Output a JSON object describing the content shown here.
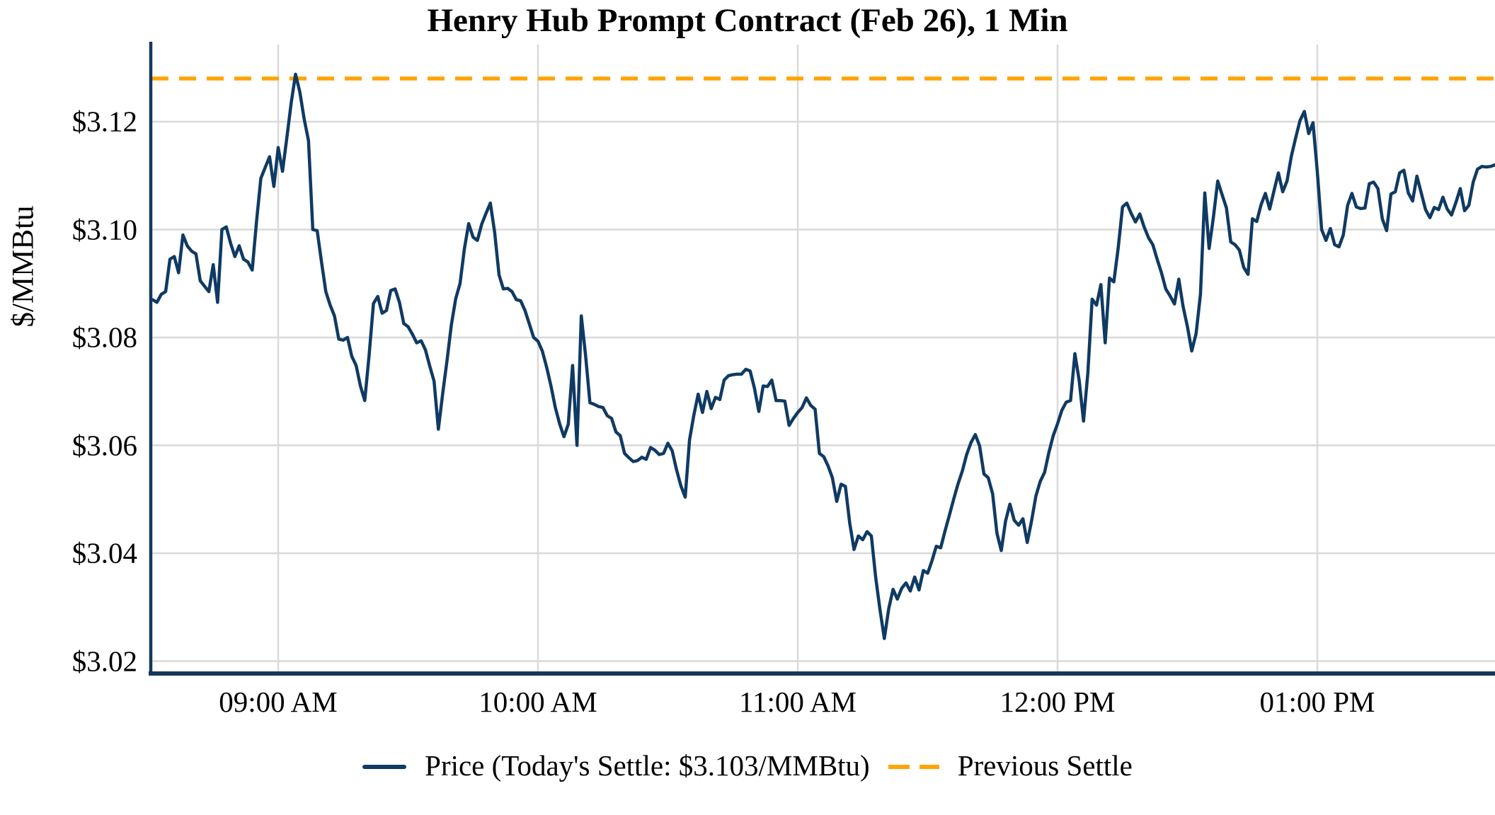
{
  "title": "Henry Hub Prompt Contract (Feb 26), 1 Min",
  "y_axis": {
    "label": "$/MMBtu",
    "ticks": [
      {
        "label": "$3.12",
        "value": 3.12
      },
      {
        "label": "$3.10",
        "value": 3.1
      },
      {
        "label": "$3.08",
        "value": 3.08
      },
      {
        "label": "$3.06",
        "value": 3.06
      },
      {
        "label": "$3.04",
        "value": 3.04
      },
      {
        "label": "$3.02",
        "value": 3.02
      }
    ]
  },
  "x_axis": {
    "ticks": [
      {
        "label": "09:00 AM",
        "minutes_from_9am": 0
      },
      {
        "label": "10:00 AM",
        "minutes_from_9am": 60
      },
      {
        "label": "11:00 AM",
        "minutes_from_9am": 120
      },
      {
        "label": "12:00 PM",
        "minutes_from_9am": 180
      },
      {
        "label": "01:00 PM",
        "minutes_from_9am": 240
      }
    ]
  },
  "legend": {
    "price_label": "Price (Today's Settle: $3.103/MMBtu)",
    "previous_settle_label": "Previous Settle"
  },
  "colors": {
    "price_line": "#0f3a63",
    "previous_settle_line": "#ffa405",
    "grid": "#d9d9d9",
    "axis": "#16365c",
    "background": "#ffffff",
    "text": "#000000"
  },
  "chart_data": {
    "type": "line",
    "title": "Henry Hub Prompt Contract (Feb 26), 1 Min",
    "xlabel": "",
    "ylabel": "$/MMBtu",
    "ylim": [
      3.02,
      3.133
    ],
    "x_range": [
      "08:31 AM",
      "01:41 PM"
    ],
    "grid": true,
    "legend_position": "bottom",
    "today_settle": 3.103,
    "previous_settle": 3.128,
    "series": [
      {
        "name": "Price (Today's Settle: $3.103/MMBtu)",
        "style": "solid",
        "start_time": "08:31",
        "interval_minutes": 1,
        "start_minutes_from_9am": -29,
        "values": [
          3.087,
          3.0865,
          3.088,
          3.0885,
          3.0945,
          3.095,
          3.092,
          3.099,
          3.097,
          3.096,
          3.0955,
          3.0905,
          3.0895,
          3.0885,
          3.0935,
          3.0865,
          3.1,
          3.1005,
          3.0975,
          3.095,
          3.097,
          3.0945,
          3.094,
          3.0925,
          3.1015,
          3.1095,
          3.1115,
          3.1135,
          3.108,
          3.1152,
          3.1108,
          3.117,
          3.1235,
          3.1288,
          3.1255,
          3.1205,
          3.1165,
          3.1,
          3.0998,
          3.094,
          3.0885,
          3.086,
          3.084,
          3.0797,
          3.0795,
          3.08,
          3.0765,
          3.0748,
          3.071,
          3.0683,
          3.0768,
          3.0863,
          3.0876,
          3.0845,
          3.085,
          3.0887,
          3.089,
          3.0865,
          3.0826,
          3.082,
          3.0806,
          3.079,
          3.0794,
          3.0777,
          3.0747,
          3.0719,
          3.063,
          3.0696,
          3.0758,
          3.0824,
          3.0872,
          3.09,
          3.0964,
          3.1011,
          3.0986,
          3.098,
          3.101,
          3.103,
          3.1049,
          3.0995,
          3.0916,
          3.089,
          3.0891,
          3.0885,
          3.087,
          3.0868,
          3.085,
          3.0825,
          3.08,
          3.0793,
          3.0775,
          3.0745,
          3.071,
          3.067,
          3.064,
          3.0616,
          3.0639,
          3.0748,
          3.06,
          3.084,
          3.0766,
          3.0679,
          3.0676,
          3.0672,
          3.067,
          3.0655,
          3.065,
          3.0625,
          3.0618,
          3.0585,
          3.0577,
          3.057,
          3.0572,
          3.0578,
          3.0574,
          3.0596,
          3.0591,
          3.0583,
          3.0585,
          3.0604,
          3.059,
          3.0555,
          3.0525,
          3.0504,
          3.061,
          3.0656,
          3.0695,
          3.0661,
          3.07,
          3.0668,
          3.0689,
          3.0685,
          3.0721,
          3.0729,
          3.0731,
          3.0732,
          3.0732,
          3.0741,
          3.0738,
          3.0706,
          3.0663,
          3.071,
          3.0709,
          3.0721,
          3.0683,
          3.0683,
          3.0682,
          3.0637,
          3.065,
          3.0661,
          3.067,
          3.0688,
          3.0674,
          3.0667,
          3.0585,
          3.0579,
          3.0562,
          3.054,
          3.0496,
          3.0528,
          3.0524,
          3.0456,
          3.0407,
          3.0432,
          3.0425,
          3.044,
          3.0432,
          3.0355,
          3.0295,
          3.0242,
          3.0297,
          3.0333,
          3.0315,
          3.0335,
          3.0345,
          3.033,
          3.0356,
          3.0332,
          3.0368,
          3.0363,
          3.0386,
          3.0413,
          3.041,
          3.0441,
          3.047,
          3.05,
          3.0528,
          3.0552,
          3.0583,
          3.0605,
          3.062,
          3.0599,
          3.0547,
          3.054,
          3.051,
          3.0437,
          3.0405,
          3.046,
          3.0491,
          3.0461,
          3.0452,
          3.0464,
          3.042,
          3.046,
          3.0506,
          3.0533,
          3.055,
          3.0587,
          3.0618,
          3.064,
          3.0665,
          3.068,
          3.0683,
          3.077,
          3.072,
          3.0645,
          3.0734,
          3.0871,
          3.086,
          3.0898,
          3.079,
          3.091,
          3.0903,
          3.0965,
          3.1042,
          3.1049,
          3.103,
          3.1014,
          3.1029,
          3.1005,
          3.0985,
          3.0972,
          3.0945,
          3.092,
          3.089,
          3.0877,
          3.0862,
          3.0908,
          3.0857,
          3.082,
          3.0775,
          3.0807,
          3.088,
          3.1068,
          3.0965,
          3.1023,
          3.109,
          3.1065,
          3.104,
          3.0977,
          3.0972,
          3.0962,
          3.093,
          3.0917,
          3.102,
          3.1015,
          3.1046,
          3.1067,
          3.1038,
          3.1072,
          3.1105,
          3.107,
          3.109,
          3.1136,
          3.117,
          3.1202,
          3.1219,
          3.1178,
          3.1198,
          3.1107,
          3.1,
          3.098,
          3.1002,
          3.0972,
          3.0968,
          3.099,
          3.1045,
          3.1067,
          3.1042,
          3.1039,
          3.104,
          3.1085,
          3.1088,
          3.1076,
          3.102,
          3.0998,
          3.1066,
          3.107,
          3.1105,
          3.111,
          3.1068,
          3.1053,
          3.1099,
          3.1068,
          3.1037,
          3.1022,
          3.1041,
          3.1037,
          3.106,
          3.1038,
          3.1027,
          3.105,
          3.1076,
          3.1035,
          3.1045,
          3.1088,
          3.1112,
          3.1117,
          3.1116,
          3.1117,
          3.112
        ]
      },
      {
        "name": "Previous Settle",
        "style": "dashed",
        "value": 3.128
      }
    ]
  }
}
